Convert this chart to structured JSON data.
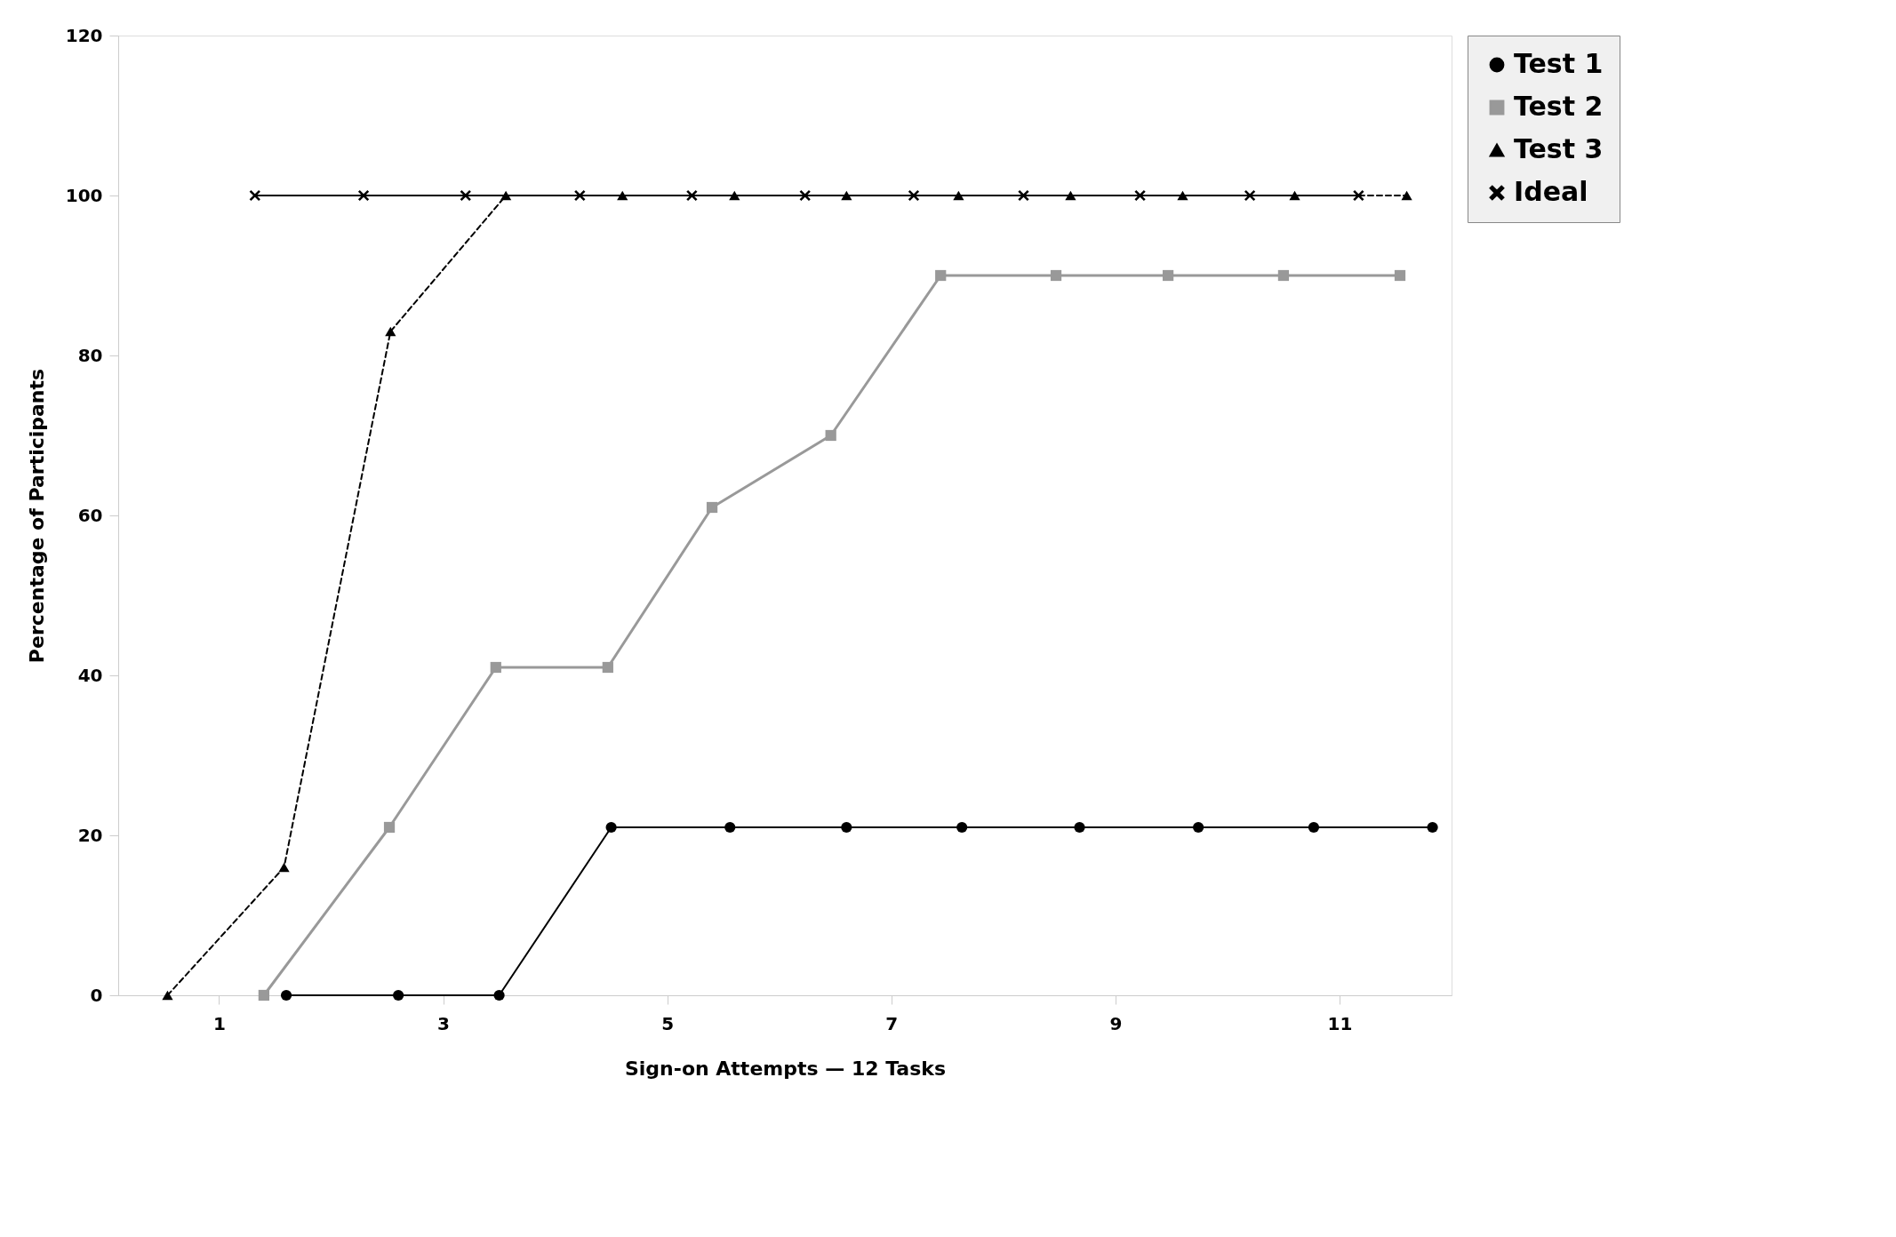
{
  "chart_data": {
    "type": "line",
    "xlabel": "Sign-on Attempts — 12 Tasks",
    "ylabel": "Percentage of Participants",
    "xlim": [
      0.1,
      12
    ],
    "xticks": [
      1,
      3,
      5,
      7,
      9,
      11
    ],
    "ylim": [
      0,
      120
    ],
    "yticks": [
      0,
      20,
      40,
      60,
      80,
      100,
      120
    ],
    "grid": false,
    "legend": "top right",
    "series": [
      {
        "name": "Test 1",
        "color": "#000000",
        "marker": "circle",
        "line_style": "solid",
        "x": [
          1.6,
          2.6,
          3.5,
          4.5,
          5.56,
          6.6,
          7.63,
          8.68,
          9.74,
          10.77,
          11.83
        ],
        "values": [
          0,
          0,
          0,
          21,
          21,
          21,
          21,
          21,
          21,
          21,
          21
        ]
      },
      {
        "name": "Test 2",
        "color": "#999999",
        "marker": "square",
        "line_style": "solid",
        "x": [
          1.4,
          2.52,
          3.47,
          4.47,
          5.4,
          6.46,
          7.44,
          8.47,
          9.47,
          10.5,
          11.54
        ],
        "values": [
          0,
          21,
          41,
          41,
          61,
          70,
          90,
          90,
          90,
          90,
          90
        ]
      },
      {
        "name": "Test 3",
        "color": "#000000",
        "marker": "triangle",
        "line_style": "dashed",
        "x": [
          0.54,
          1.58,
          2.53,
          3.56,
          4.6,
          5.6,
          6.6,
          7.6,
          8.6,
          9.6,
          10.6,
          11.6
        ],
        "values": [
          0,
          16,
          83,
          100,
          100,
          100,
          100,
          100,
          100,
          100,
          100,
          100
        ]
      },
      {
        "name": "Ideal",
        "color": "#000000",
        "marker": "cross",
        "line_style": "solid",
        "x": [
          1.32,
          2.29,
          3.2,
          4.22,
          5.22,
          6.23,
          7.2,
          8.18,
          9.22,
          10.2,
          11.17
        ],
        "values": [
          100,
          100,
          100,
          100,
          100,
          100,
          100,
          100,
          100,
          100,
          100
        ]
      }
    ]
  }
}
